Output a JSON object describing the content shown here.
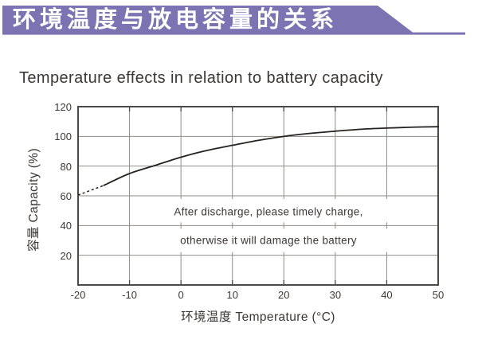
{
  "banner": {
    "title": "环境温度与放电容量的关系"
  },
  "colors": {
    "banner": "#7b73b2",
    "border": "#4d4946",
    "grid": "#8f8b89",
    "tick": "#4d4946",
    "curve": "#262220",
    "text": "#3b3734",
    "mask": "#ffffff"
  },
  "chart_data": {
    "type": "line",
    "title": "Temperature effects in relation to battery capacity",
    "xlabel": "环境温度 Temperature (°C)",
    "ylabel": "容量 Capacity (%)",
    "xlim": [
      -20,
      50
    ],
    "ylim": [
      0,
      120
    ],
    "x_ticks": [
      -20,
      -10,
      0,
      10,
      20,
      30,
      40,
      50
    ],
    "y_ticks": [
      20,
      40,
      60,
      80,
      100,
      120
    ],
    "grid": true,
    "legend": "none",
    "series": [
      {
        "name": "capacity-vs-temperature",
        "x": [
          -20,
          -15,
          -10,
          -5,
          0,
          5,
          10,
          15,
          20,
          25,
          30,
          35,
          40,
          45,
          50
        ],
        "y": [
          60.5,
          67,
          75,
          80.5,
          86,
          90.5,
          94,
          97.3,
          100,
          102,
          103.5,
          104.8,
          105.6,
          106.2,
          106.5
        ],
        "style": "solid",
        "dashed_until_x": -15
      }
    ],
    "annotation": {
      "line1": "After discharge, please timely charge,",
      "line2": "otherwise it will damage the battery"
    },
    "annotation_bands": [
      [
        60,
        40
      ],
      [
        40,
        20
      ]
    ]
  }
}
